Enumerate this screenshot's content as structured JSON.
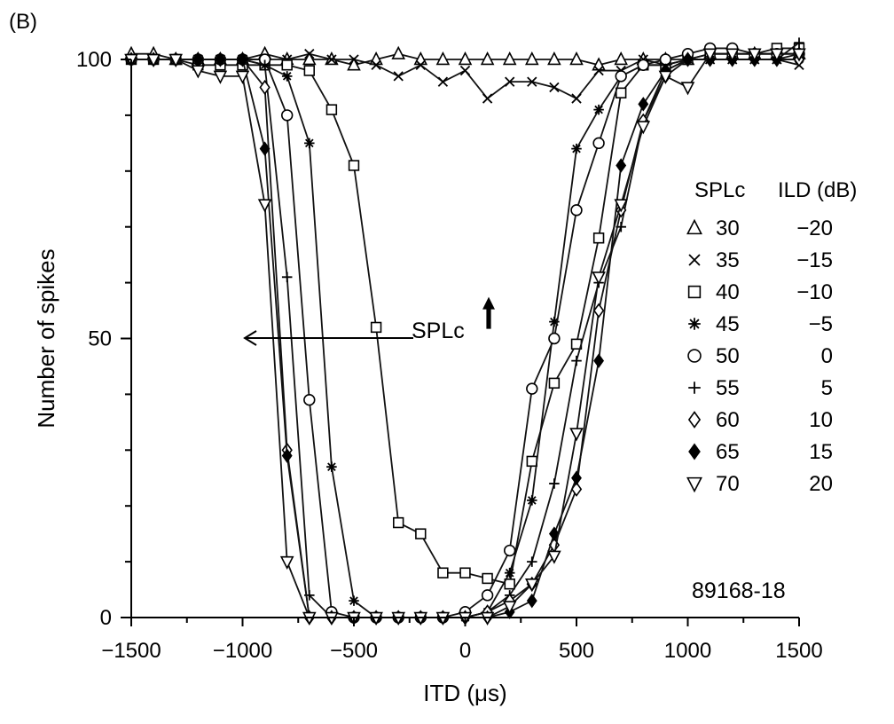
{
  "panel_label": "(B)",
  "annotations": {
    "spl_arrow_label": "SPLc",
    "figure_id": "89168-18"
  },
  "legend": {
    "header_spl": "SPLc",
    "header_ild": "ILD (dB)",
    "items": [
      {
        "marker": "triangle-up-open",
        "spl": "30",
        "ild": "−20"
      },
      {
        "marker": "x-cross",
        "spl": "35",
        "ild": "−15"
      },
      {
        "marker": "square-open",
        "spl": "40",
        "ild": "−10"
      },
      {
        "marker": "asterisk",
        "spl": "45",
        "ild": "−5"
      },
      {
        "marker": "circle-open",
        "spl": "50",
        "ild": "0"
      },
      {
        "marker": "plus",
        "spl": "55",
        "ild": "5"
      },
      {
        "marker": "diamond-open",
        "spl": "60",
        "ild": "10"
      },
      {
        "marker": "diamond-filled",
        "spl": "65",
        "ild": "15"
      },
      {
        "marker": "triangle-down-open",
        "spl": "70",
        "ild": "20"
      }
    ]
  },
  "chart_data": {
    "type": "line",
    "title": "",
    "xlabel": "ITD (μs)",
    "ylabel": "Number of spikes",
    "xlim": [
      -1500,
      1500
    ],
    "ylim": [
      0,
      100
    ],
    "x_ticks": [
      -1500,
      -1000,
      -500,
      0,
      500,
      1000,
      1500
    ],
    "x_tick_labels": [
      "−1500",
      "−1000",
      "−500",
      "0",
      "500",
      "1000",
      "1500"
    ],
    "y_ticks": [
      0,
      50,
      100
    ],
    "y_tick_labels": [
      "0",
      "50",
      "100"
    ],
    "grid": false,
    "legend_position": "right",
    "series": [
      {
        "marker": "triangle-up-open",
        "x": [
          -1500,
          -1400,
          -1300,
          -1200,
          -1100,
          -1000,
          -900,
          -800,
          -700,
          -600,
          -500,
          -400,
          -300,
          -200,
          -100,
          0,
          100,
          200,
          300,
          400,
          500,
          600,
          700,
          800,
          900,
          1000,
          1100,
          1200,
          1300,
          1400,
          1500
        ],
        "y": [
          101,
          101,
          100,
          100,
          100,
          100,
          101,
          100,
          100,
          100,
          99,
          100,
          101,
          100,
          100,
          100,
          100,
          100,
          100,
          100,
          100,
          99,
          100,
          100,
          100,
          100,
          101,
          101,
          101,
          101,
          101
        ]
      },
      {
        "marker": "x-cross",
        "x": [
          -1500,
          -1400,
          -1300,
          -1200,
          -1100,
          -1000,
          -900,
          -800,
          -700,
          -600,
          -500,
          -400,
          -300,
          -200,
          -100,
          0,
          100,
          200,
          300,
          400,
          500,
          600,
          700,
          800,
          900,
          1000,
          1100,
          1200,
          1300,
          1400,
          1500
        ],
        "y": [
          100,
          100,
          100,
          100,
          100,
          100,
          100,
          100,
          101,
          100,
          100,
          99,
          97,
          99,
          96,
          98,
          93,
          96,
          96,
          95,
          93,
          98,
          98,
          100,
          99,
          100,
          100,
          100,
          100,
          100,
          99
        ]
      },
      {
        "marker": "square-open",
        "x": [
          -1500,
          -1400,
          -1300,
          -1200,
          -1100,
          -1000,
          -900,
          -800,
          -700,
          -600,
          -500,
          -400,
          -300,
          -200,
          -100,
          0,
          100,
          200,
          300,
          400,
          500,
          600,
          700,
          800,
          900,
          1000,
          1100,
          1200,
          1300,
          1400,
          1500
        ],
        "y": [
          100,
          100,
          100,
          99,
          99,
          99,
          99,
          99,
          98,
          91,
          81,
          52,
          17,
          15,
          8,
          8,
          7,
          6,
          28,
          42,
          49,
          68,
          94,
          99,
          99,
          100,
          101,
          101,
          101,
          102,
          102
        ]
      },
      {
        "marker": "asterisk",
        "x": [
          -1500,
          -1400,
          -1300,
          -1200,
          -1100,
          -1000,
          -900,
          -800,
          -700,
          -600,
          -500,
          -400,
          -300,
          -200,
          -100,
          0,
          100,
          200,
          300,
          400,
          500,
          600,
          700,
          800,
          900,
          1000,
          1100,
          1200,
          1300,
          1400,
          1500
        ],
        "y": [
          100,
          100,
          100,
          100,
          100,
          100,
          99,
          97,
          85,
          27,
          3,
          0,
          0,
          0,
          0,
          0,
          1,
          8,
          21,
          53,
          84,
          91,
          97,
          99,
          99,
          100,
          100,
          100,
          100,
          100,
          100
        ]
      },
      {
        "marker": "circle-open",
        "x": [
          -1500,
          -1400,
          -1300,
          -1200,
          -1100,
          -1000,
          -900,
          -800,
          -700,
          -600,
          -500,
          -400,
          -300,
          -200,
          -100,
          0,
          100,
          200,
          300,
          400,
          500,
          600,
          700,
          800,
          900,
          1000,
          1100,
          1200,
          1300,
          1400,
          1500
        ],
        "y": [
          100,
          100,
          100,
          100,
          100,
          100,
          100,
          90,
          39,
          1,
          0,
          0,
          0,
          0,
          0,
          1,
          4,
          12,
          41,
          50,
          73,
          85,
          97,
          99,
          100,
          101,
          102,
          102,
          101,
          101,
          101
        ]
      },
      {
        "marker": "plus",
        "x": [
          -1500,
          -1400,
          -1300,
          -1200,
          -1100,
          -1000,
          -900,
          -800,
          -700,
          -600,
          -500,
          -400,
          -300,
          -200,
          -100,
          0,
          100,
          200,
          300,
          400,
          500,
          600,
          700,
          800,
          900,
          1000,
          1100,
          1200,
          1300,
          1400,
          1500
        ],
        "y": [
          100,
          100,
          100,
          100,
          100,
          100,
          99,
          61,
          4,
          0,
          0,
          0,
          0,
          0,
          0,
          0,
          1,
          4,
          10,
          24,
          46,
          60,
          70,
          89,
          98,
          100,
          100,
          100,
          100,
          100,
          103
        ]
      },
      {
        "marker": "diamond-open",
        "x": [
          -1500,
          -1400,
          -1300,
          -1200,
          -1100,
          -1000,
          -900,
          -800,
          -700,
          -600,
          -500,
          -400,
          -300,
          -200,
          -100,
          0,
          100,
          200,
          300,
          400,
          500,
          600,
          700,
          800,
          900,
          1000,
          1100,
          1200,
          1300,
          1400,
          1500
        ],
        "y": [
          100,
          100,
          100,
          100,
          100,
          100,
          95,
          30,
          0,
          0,
          0,
          0,
          0,
          0,
          0,
          0,
          1,
          3,
          6,
          13,
          23,
          55,
          73,
          89,
          97,
          100,
          100,
          100,
          100,
          100,
          100
        ]
      },
      {
        "marker": "diamond-filled",
        "x": [
          -1500,
          -1400,
          -1300,
          -1200,
          -1100,
          -1000,
          -900,
          -800,
          -700,
          -600,
          -500,
          -400,
          -300,
          -200,
          -100,
          0,
          100,
          200,
          300,
          400,
          500,
          600,
          700,
          800,
          900,
          1000,
          1100,
          1200,
          1300,
          1400,
          1500
        ],
        "y": [
          100,
          100,
          100,
          100,
          100,
          100,
          84,
          29,
          0,
          0,
          0,
          0,
          0,
          0,
          0,
          0,
          0,
          1,
          3,
          15,
          25,
          46,
          81,
          92,
          98,
          100,
          100,
          100,
          100,
          100,
          101
        ]
      },
      {
        "marker": "triangle-down-open",
        "x": [
          -1500,
          -1400,
          -1300,
          -1200,
          -1100,
          -1000,
          -900,
          -800,
          -700,
          -600,
          -500,
          -400,
          -300,
          -200,
          -100,
          0,
          100,
          200,
          300,
          400,
          500,
          600,
          700,
          800,
          900,
          1000,
          1100,
          1200,
          1300,
          1400,
          1500
        ],
        "y": [
          100,
          100,
          100,
          98,
          97,
          97,
          74,
          10,
          0,
          0,
          0,
          0,
          0,
          0,
          0,
          0,
          0,
          2,
          6,
          11,
          33,
          61,
          74,
          88,
          97,
          95,
          101,
          101,
          101,
          101,
          101
        ]
      }
    ]
  }
}
